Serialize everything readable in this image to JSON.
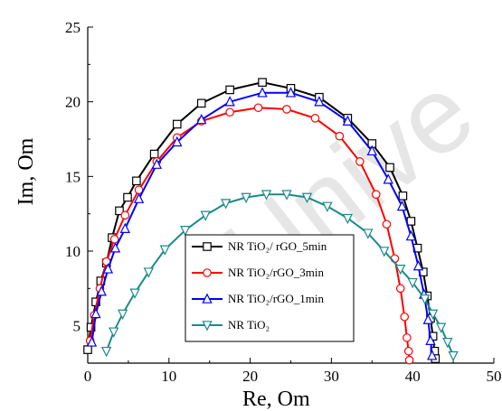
{
  "chart_data": {
    "type": "scatter",
    "xlabel": "Re, Om",
    "ylabel": "Im, Om",
    "xlim": [
      0,
      50
    ],
    "ylim": [
      2.5,
      25
    ],
    "x_ticks": [
      0,
      10,
      20,
      30,
      40,
      50
    ],
    "y_ticks": [
      5,
      10,
      15,
      20,
      25
    ],
    "grid": false,
    "legend_position": "center-left",
    "watermark_text": "Unive",
    "series": [
      {
        "name": "NR TiO₂/ rGO_5min",
        "color": "#000000",
        "marker": "square",
        "x": [
          0.0,
          0.4,
          1.0,
          1.6,
          2.3,
          3.0,
          3.9,
          4.9,
          6.0,
          8.2,
          11.0,
          14.0,
          17.5,
          21.5,
          25.0,
          28.5,
          32.0,
          35.0,
          37.2,
          38.8,
          39.8,
          40.6,
          41.3,
          41.8,
          42.2,
          42.5,
          42.7,
          42.8
        ],
        "y": [
          3.4,
          4.9,
          6.6,
          8.0,
          9.2,
          10.9,
          12.7,
          13.6,
          14.7,
          16.5,
          18.5,
          19.9,
          20.8,
          21.3,
          20.9,
          20.3,
          18.9,
          17.2,
          15.6,
          13.7,
          12.0,
          10.2,
          8.6,
          7.0,
          5.5,
          4.3,
          3.3,
          2.8
        ]
      },
      {
        "name": "NR TiO₂/rGO_3min",
        "color": "#ff0000",
        "marker": "circle",
        "x": [
          0.3,
          0.8,
          1.5,
          2.3,
          3.3,
          4.6,
          6.3,
          8.5,
          11.0,
          14.0,
          17.5,
          21.0,
          24.5,
          28.0,
          31.0,
          33.5,
          35.5,
          36.8,
          37.8,
          38.5,
          39.0,
          39.3,
          39.5,
          39.6
        ],
        "y": [
          4.0,
          5.7,
          7.5,
          9.3,
          10.8,
          12.4,
          14.1,
          16.0,
          17.6,
          18.7,
          19.3,
          19.6,
          19.5,
          18.9,
          17.7,
          16.0,
          13.8,
          11.8,
          9.5,
          7.5,
          5.6,
          4.2,
          3.3,
          2.7
        ]
      },
      {
        "name": "NR TiO₂/rGO_1min",
        "color": "#0000ff",
        "marker": "triangle-up",
        "x": [
          0.5,
          1.0,
          1.7,
          2.5,
          3.4,
          4.6,
          6.3,
          8.5,
          11.0,
          14.0,
          17.5,
          21.5,
          25.0,
          28.5,
          32.0,
          35.0,
          37.0,
          38.7,
          39.8,
          40.7,
          41.4,
          41.9,
          42.2,
          42.4
        ],
        "y": [
          3.9,
          5.8,
          7.3,
          8.8,
          10.2,
          11.5,
          13.5,
          15.8,
          17.3,
          18.8,
          20.0,
          20.6,
          20.6,
          20.0,
          18.7,
          16.7,
          14.8,
          13.0,
          11.0,
          9.0,
          7.1,
          5.4,
          4.0,
          3.0
        ]
      },
      {
        "name": "NR TiO₂",
        "color": "#1a8a8a",
        "marker": "triangle-down",
        "x": [
          2.3,
          3.2,
          4.3,
          5.8,
          7.5,
          9.5,
          12.0,
          14.5,
          17.0,
          19.5,
          22.0,
          24.5,
          27.0,
          29.5,
          32.0,
          34.5,
          36.5,
          38.5,
          40.0,
          41.5,
          42.5,
          43.5,
          44.3,
          45.0
        ],
        "y": [
          3.3,
          4.6,
          5.8,
          7.2,
          8.6,
          10.1,
          11.4,
          12.4,
          13.2,
          13.6,
          13.8,
          13.8,
          13.6,
          13.0,
          12.2,
          11.2,
          10.0,
          8.8,
          7.9,
          6.8,
          5.8,
          4.9,
          3.9,
          3.0
        ]
      }
    ]
  }
}
